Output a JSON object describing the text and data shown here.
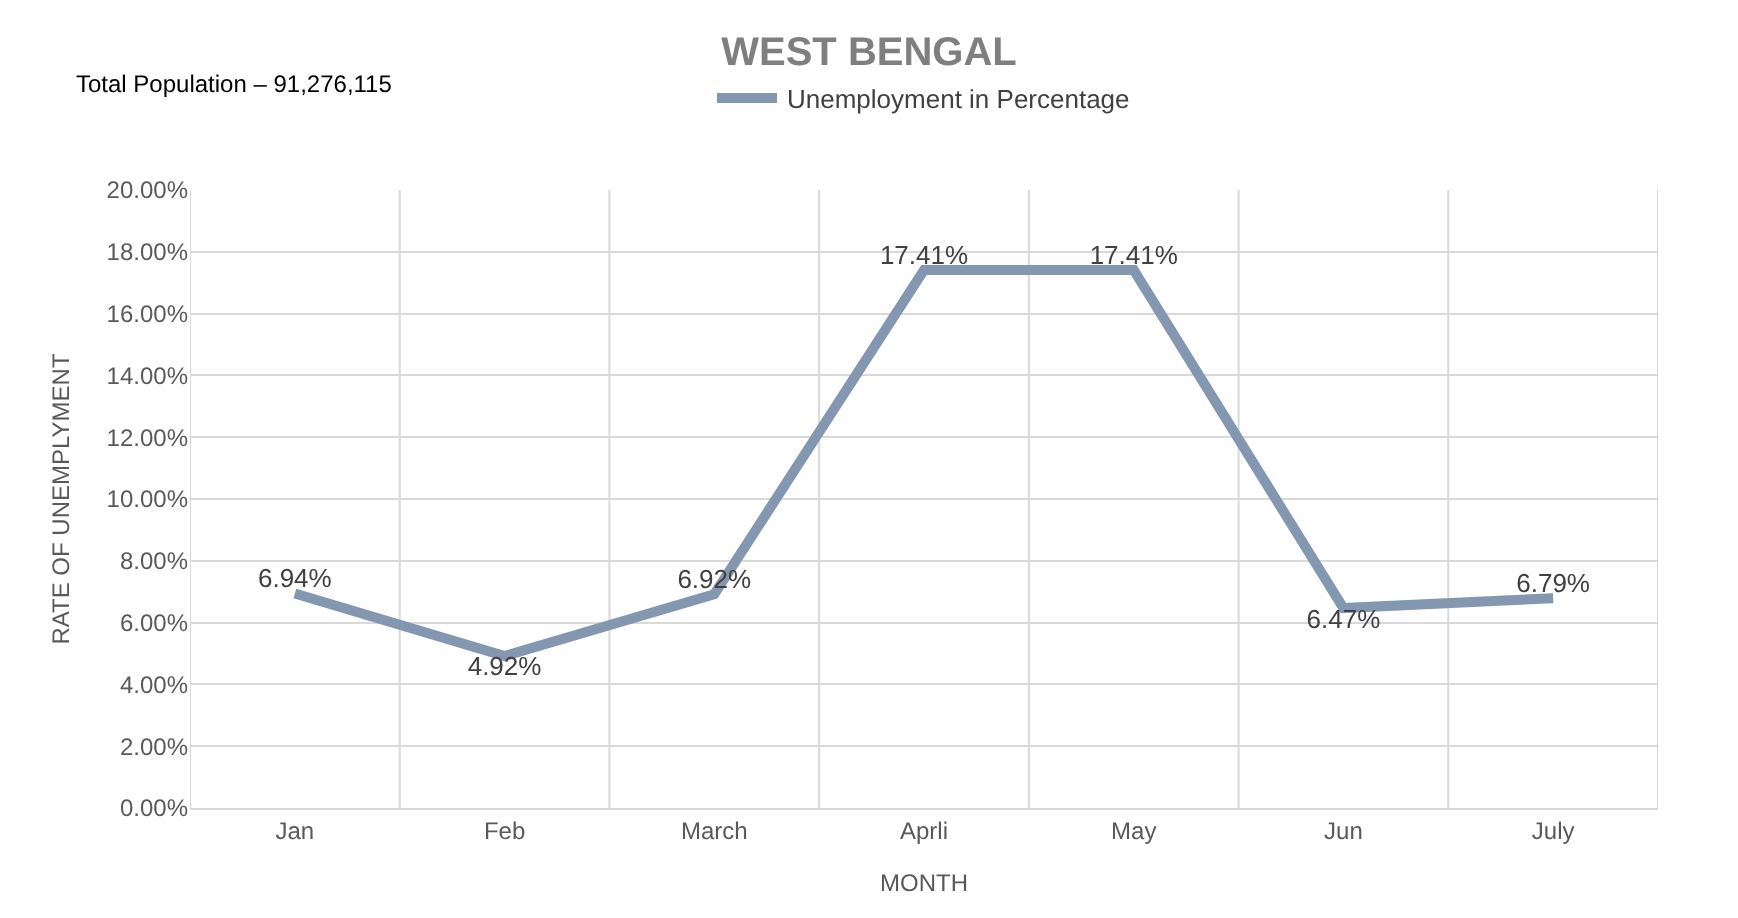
{
  "chart_data": {
    "type": "line",
    "title": "WEST BENGAL",
    "xlabel": "MONTH",
    "ylabel": "RATE OF UNEMPLYMENT",
    "annotations": [
      "Total Population – 91,276,115"
    ],
    "categories": [
      "Jan",
      "Feb",
      "March",
      "Aprli",
      "May",
      "Jun",
      "July"
    ],
    "series": [
      {
        "name": "Unemployment in Percentage",
        "color": "#8497b0",
        "values": [
          6.94,
          4.92,
          6.92,
          17.41,
          17.41,
          6.47,
          6.79
        ],
        "value_labels": [
          "6.94%",
          "4.92%",
          "6.92%",
          "17.41%",
          "17.41%",
          "6.47%",
          "6.79%"
        ]
      }
    ],
    "ylim": [
      0,
      20
    ],
    "yticks": [
      {
        "value": 0,
        "label": "0.00%"
      },
      {
        "value": 2,
        "label": "2.00%"
      },
      {
        "value": 4,
        "label": "4.00%"
      },
      {
        "value": 6,
        "label": "6.00%"
      },
      {
        "value": 8,
        "label": "8.00%"
      },
      {
        "value": 10,
        "label": "10.00%"
      },
      {
        "value": 12,
        "label": "12.00%"
      },
      {
        "value": 14,
        "label": "14.00%"
      },
      {
        "value": 16,
        "label": "16.00%"
      },
      {
        "value": 18,
        "label": "18.00%"
      },
      {
        "value": 20,
        "label": "20.00%"
      }
    ],
    "grid": true,
    "legend": "top",
    "marker": "none",
    "line_style": "solid"
  }
}
